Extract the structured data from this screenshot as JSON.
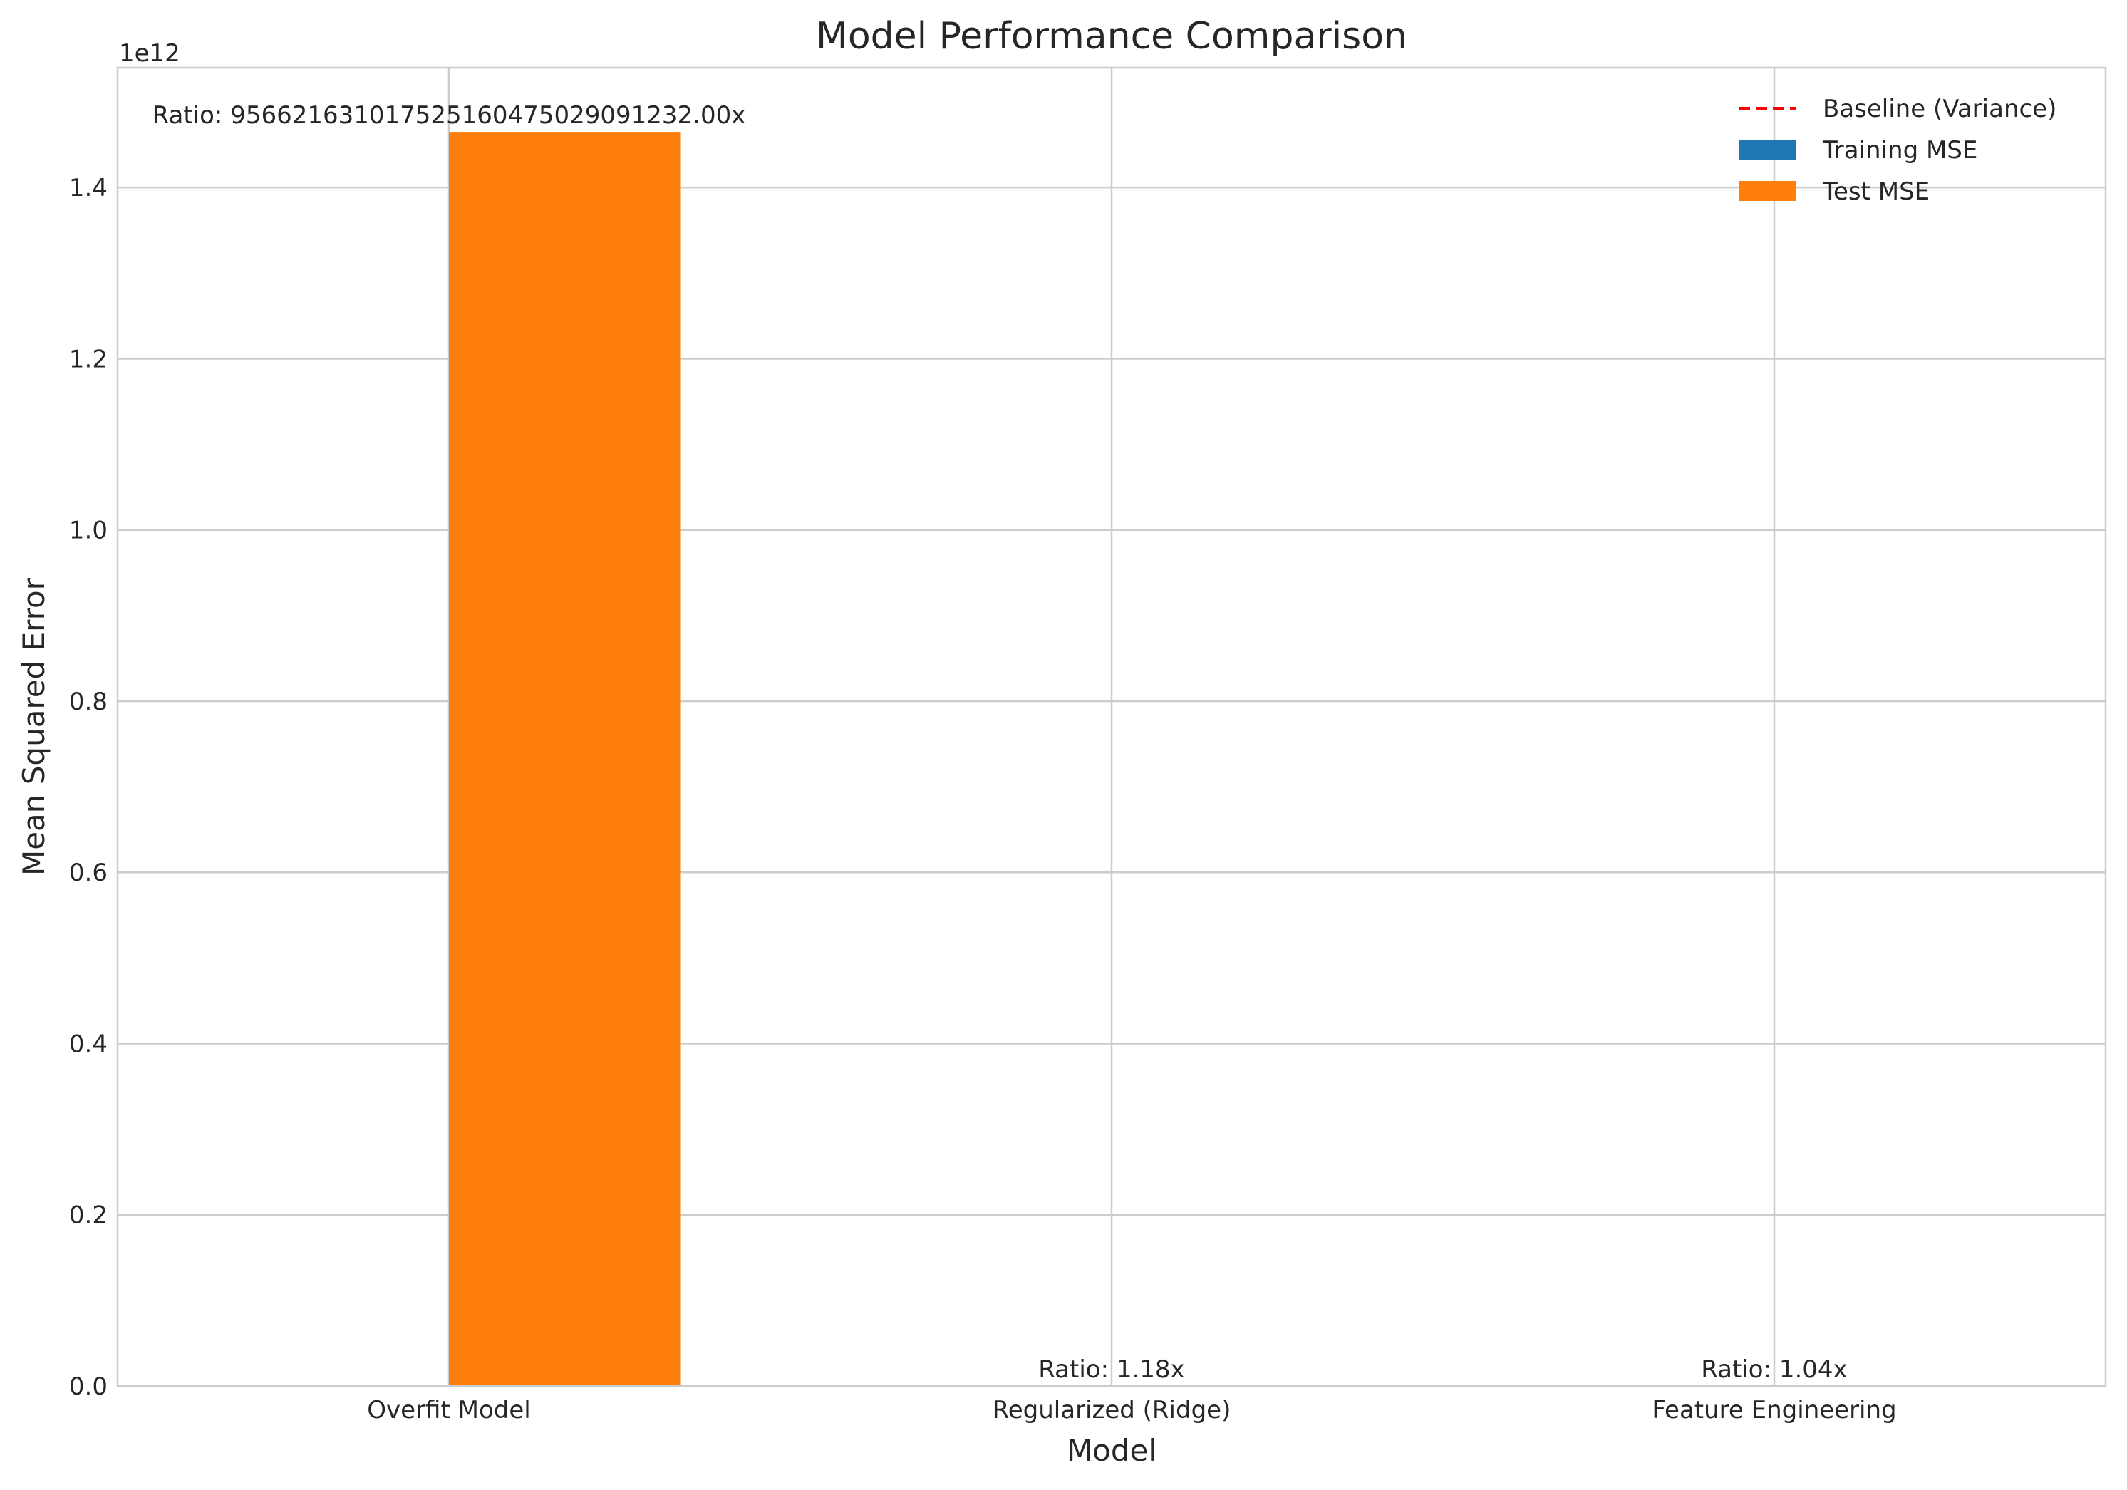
{
  "chart_data": {
    "type": "bar",
    "title": "Model Performance Comparison",
    "xlabel": "Model",
    "ylabel": "Mean Squared Error",
    "y_offset_label": "1e12",
    "y_scale_factor": 1000000000000,
    "categories": [
      "Overfit Model",
      "Regularized (Ridge)",
      "Feature Engineering"
    ],
    "series": [
      {
        "name": "Training MSE",
        "color": "#1f77b4",
        "values": [
          0,
          0,
          0
        ]
      },
      {
        "name": "Test MSE",
        "color": "#ff7f0e",
        "values": [
          1465000000000,
          0,
          0
        ]
      }
    ],
    "baseline": {
      "name": "Baseline (Variance)",
      "color": "#ff0000",
      "value": 0
    },
    "bar_labels": [
      "Ratio: 956621631017525160475029091232.00x",
      "Ratio: 1.18x",
      "Ratio: 1.04x"
    ],
    "ylim": [
      0,
      1540000000000
    ],
    "yticks": [
      0,
      200000000000,
      400000000000,
      600000000000,
      800000000000,
      1000000000000,
      1200000000000,
      1400000000000
    ],
    "ytick_labels": [
      "0.0",
      "0.2",
      "0.4",
      "0.6",
      "0.8",
      "1.0",
      "1.2",
      "1.4"
    ],
    "grid": true,
    "legend_position": "top-right"
  }
}
